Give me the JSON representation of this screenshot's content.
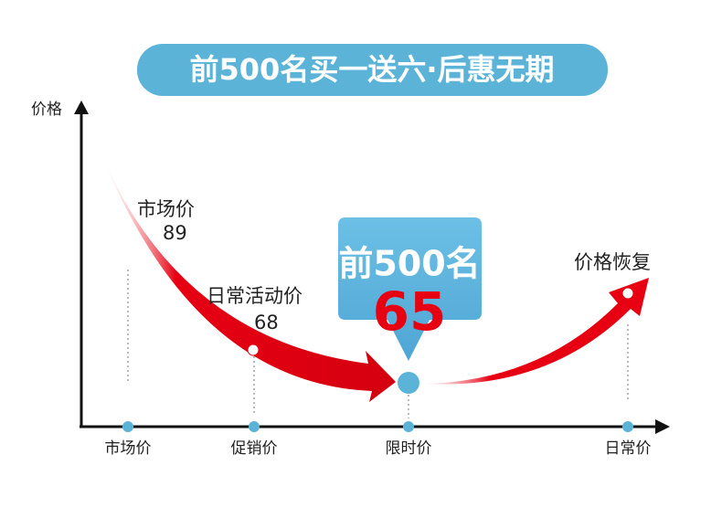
{
  "banner": "前500名买一送六·后惠无期",
  "y_axis_label": "价格",
  "points": [
    {
      "label": "市场价",
      "price": 89
    },
    {
      "label": "日常活动价",
      "price": 68
    },
    {
      "label": "前500名",
      "price": 65
    },
    {
      "label": "价格恢复"
    }
  ],
  "x_labels": [
    "市场价",
    "促销价",
    "限时价",
    "日常价"
  ]
}
